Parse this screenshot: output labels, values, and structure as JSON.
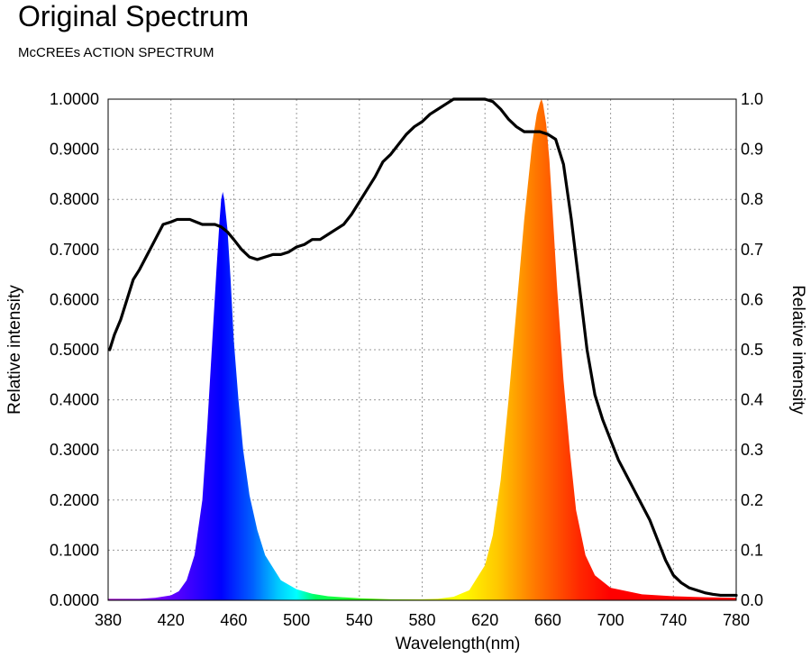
{
  "title": "Original Spectrum",
  "subtitle": "McCREEs ACTION SPECTRUM",
  "chart_data": {
    "type": "area",
    "title": "Original Spectrum",
    "subtitle": "McCREEs ACTION SPECTRUM",
    "xlabel": "Wavelength(nm)",
    "ylabel_left": "Relative intensity",
    "ylabel_right": "Relative intensity",
    "xlim": [
      380,
      780
    ],
    "ylim_left": [
      0,
      1
    ],
    "ylim_right": [
      0,
      1
    ],
    "x_ticks": [
      "380",
      "420",
      "460",
      "500",
      "540",
      "580",
      "620",
      "660",
      "700",
      "740",
      "780"
    ],
    "y_left_ticks": [
      "0.0000",
      "0.1000",
      "0.2000",
      "0.3000",
      "0.4000",
      "0.5000",
      "0.6000",
      "0.7000",
      "0.8000",
      "0.9000",
      "1.0000"
    ],
    "y_right_ticks": [
      "0.0",
      "0.1",
      "0.2",
      "0.3",
      "0.4",
      "0.5",
      "0.6",
      "0.7",
      "0.8",
      "0.9",
      "1.0"
    ],
    "grid": true,
    "series": [
      {
        "kind": "emission",
        "style": "rainbow-filled-area",
        "x": [
          380,
          400,
          410,
          420,
          425,
          430,
          435,
          440,
          443,
          446,
          449,
          451,
          452,
          453,
          454,
          456,
          458,
          460,
          463,
          466,
          470,
          475,
          480,
          490,
          500,
          510,
          520,
          540,
          560,
          580,
          590,
          600,
          610,
          620,
          625,
          630,
          635,
          640,
          645,
          650,
          653,
          655,
          656,
          657,
          659,
          661,
          663,
          666,
          670,
          674,
          678,
          684,
          690,
          700,
          720,
          740,
          760,
          780
        ],
        "y": [
          0.003,
          0.003,
          0.005,
          0.01,
          0.018,
          0.04,
          0.09,
          0.2,
          0.34,
          0.5,
          0.66,
          0.76,
          0.8,
          0.815,
          0.8,
          0.74,
          0.64,
          0.52,
          0.4,
          0.3,
          0.21,
          0.14,
          0.09,
          0.04,
          0.022,
          0.013,
          0.008,
          0.004,
          0.002,
          0.002,
          0.003,
          0.007,
          0.02,
          0.07,
          0.13,
          0.24,
          0.4,
          0.58,
          0.76,
          0.91,
          0.97,
          0.993,
          1.0,
          0.99,
          0.95,
          0.88,
          0.78,
          0.62,
          0.44,
          0.3,
          0.18,
          0.09,
          0.05,
          0.025,
          0.012,
          0.008,
          0.006,
          0.005
        ]
      },
      {
        "name": "McCREEs ACTION SPECTRUM",
        "kind": "action",
        "color": "#000000",
        "x": [
          381,
          384,
          388,
          392,
          396,
          400,
          405,
          410,
          415,
          420,
          424,
          428,
          432,
          436,
          440,
          444,
          448,
          452,
          456,
          460,
          465,
          470,
          475,
          480,
          485,
          490,
          495,
          500,
          505,
          510,
          515,
          520,
          525,
          530,
          535,
          540,
          545,
          550,
          555,
          560,
          565,
          570,
          575,
          580,
          585,
          590,
          595,
          600,
          605,
          610,
          615,
          620,
          625,
          630,
          635,
          640,
          645,
          650,
          655,
          660,
          665,
          670,
          675,
          680,
          685,
          690,
          695,
          700,
          705,
          710,
          715,
          720,
          725,
          730,
          735,
          740,
          745,
          750,
          755,
          760,
          765,
          770,
          775,
          780
        ],
        "y": [
          0.5,
          0.53,
          0.56,
          0.6,
          0.64,
          0.66,
          0.69,
          0.72,
          0.75,
          0.755,
          0.76,
          0.76,
          0.76,
          0.755,
          0.75,
          0.75,
          0.75,
          0.745,
          0.735,
          0.72,
          0.7,
          0.685,
          0.68,
          0.685,
          0.69,
          0.69,
          0.695,
          0.705,
          0.71,
          0.72,
          0.72,
          0.73,
          0.74,
          0.75,
          0.77,
          0.795,
          0.82,
          0.845,
          0.875,
          0.89,
          0.91,
          0.93,
          0.945,
          0.955,
          0.97,
          0.98,
          0.99,
          1.0,
          1.0,
          1.0,
          1.0,
          1.0,
          0.995,
          0.98,
          0.96,
          0.945,
          0.935,
          0.935,
          0.935,
          0.93,
          0.92,
          0.87,
          0.76,
          0.63,
          0.5,
          0.41,
          0.36,
          0.32,
          0.28,
          0.25,
          0.22,
          0.19,
          0.16,
          0.12,
          0.08,
          0.05,
          0.035,
          0.025,
          0.02,
          0.015,
          0.012,
          0.01,
          0.01,
          0.01
        ]
      }
    ]
  }
}
